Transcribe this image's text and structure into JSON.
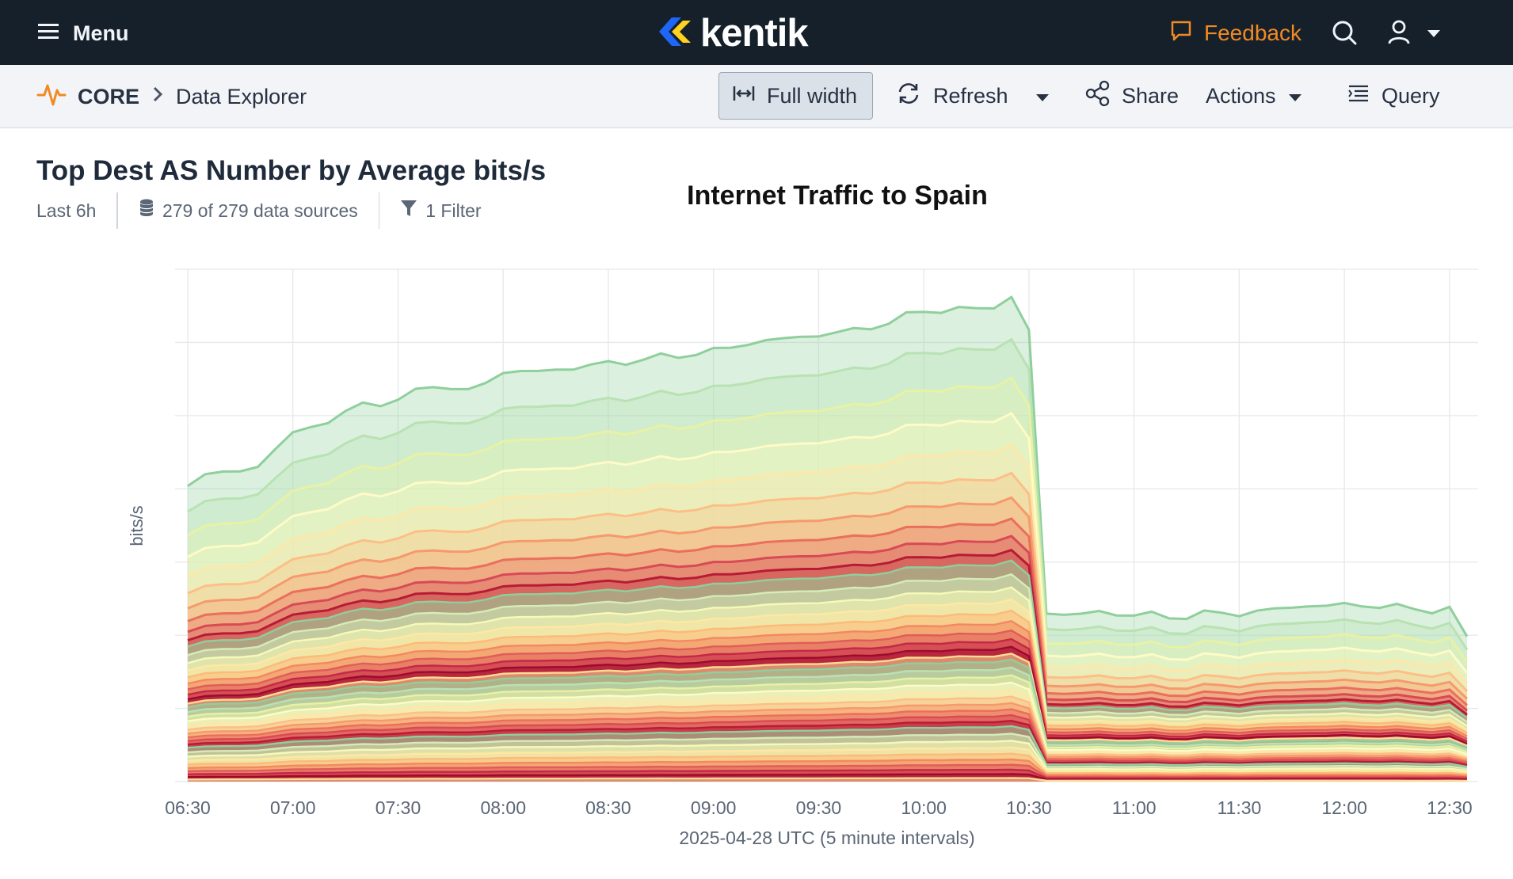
{
  "topbar": {
    "menu_label": "Menu",
    "logo_text": "kentik",
    "feedback_label": "Feedback",
    "colors": {
      "background": "#15202b",
      "accent": "#f08a24"
    }
  },
  "toolbar": {
    "breadcrumb_root": "CORE",
    "breadcrumb_page": "Data Explorer",
    "full_width_label": "Full width",
    "refresh_label": "Refresh",
    "share_label": "Share",
    "actions_label": "Actions",
    "query_label": "Query"
  },
  "header": {
    "title": "Top Dest AS Number by Average bits/s",
    "time_range": "Last 6h",
    "data_sources": "279 of 279 data sources",
    "filters": "1 Filter",
    "overlay_title": "Internet Traffic to Spain"
  },
  "chart_data": {
    "type": "area",
    "stacked": true,
    "ylabel": "bits/s",
    "xlabel": "2025-04-28 UTC (5 minute intervals)",
    "x_ticks": [
      "06:30",
      "07:00",
      "07:30",
      "08:00",
      "08:30",
      "09:00",
      "09:30",
      "10:00",
      "10:30",
      "11:00",
      "11:30",
      "12:00",
      "12:30"
    ],
    "y_tick_labels_shown": false,
    "grid": true,
    "x_start": "06:30",
    "x_end": "12:35",
    "total_relative": {
      "06:30": 0.73,
      "06:35": 0.75,
      "06:40": 0.75,
      "06:45": 0.76,
      "06:50": 0.77,
      "07:00": 0.85,
      "07:10": 0.88,
      "07:20": 0.92,
      "07:30": 0.93,
      "07:40": 0.97,
      "07:50": 0.95,
      "08:00": 1.0,
      "08:10": 1.0,
      "08:20": 1.01,
      "08:30": 1.02,
      "08:40": 1.03,
      "08:50": 1.04,
      "09:00": 1.05,
      "09:10": 1.07,
      "09:20": 1.08,
      "09:30": 1.09,
      "09:40": 1.1,
      "09:50": 1.12,
      "10:00": 1.15,
      "10:10": 1.15,
      "10:20": 1.16,
      "10:25": 1.18,
      "10:30": 1.1,
      "10:35": 0.41,
      "10:45": 0.41,
      "11:00": 0.41,
      "11:10": 0.4,
      "11:20": 0.41,
      "11:30": 0.41,
      "11:40": 0.42,
      "11:50": 0.43,
      "12:00": 0.43,
      "12:10": 0.43,
      "12:20": 0.42,
      "12:30": 0.42,
      "12:35": 0.35
    },
    "series_count": 40,
    "palette": [
      "#8fcf9c",
      "#b9e2b2",
      "#e8f2a4",
      "#fdfbc7",
      "#fde7a9",
      "#fcbf87",
      "#f59a6c",
      "#ea6f5d",
      "#d84a55",
      "#b61c36",
      "#8fcf9c",
      "#d5ecb8",
      "#f6fab8",
      "#fee8a2",
      "#fdba78",
      "#f38861",
      "#e05c5a",
      "#c42847",
      "#9e0a2c",
      "#fddb94"
    ]
  }
}
